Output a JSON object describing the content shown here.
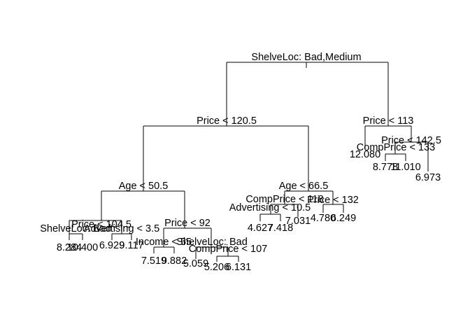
{
  "tree": {
    "splits": {
      "root": "ShelveLoc: Bad,Medium",
      "l": "Price < 120.5",
      "ll": "Age < 50.5",
      "lll": "Price < 104.5",
      "llll": "ShelveLoc: Bad",
      "lllr": "Advertising < 3.5",
      "llr": "Price < 92",
      "llrl": "Income < 55",
      "llrr": "ShelveLoc: Bad",
      "llrrr": "CompPrice < 107",
      "lr": "Age < 66.5",
      "lrl": "CompPrice < 118",
      "lrll": "Advertising < 10.5",
      "lrr": "Price < 132",
      "r": "Price < 113",
      "rr": "Price < 142.5",
      "rrl": "CompPrice < 133"
    },
    "leaves": {
      "llll_l": "8.284",
      "llll_r": "10.400",
      "lllr_l": "6.929",
      "lllr_r": "9.117",
      "llrl_l": "7.519",
      "llrl_r": "9.882",
      "llrr_l": "5.059",
      "llrrr_l": "5.206",
      "llrrr_r": "6.131",
      "lrll_l": "4.627",
      "lrll_r": "7.418",
      "lrl_r": "7.031",
      "lrr_l": "4.780",
      "lrr_r": "6.249",
      "r_l": "12.080",
      "rrl_l": "8.778",
      "rrl_r": "11.010",
      "rr_r": "6.973"
    }
  }
}
